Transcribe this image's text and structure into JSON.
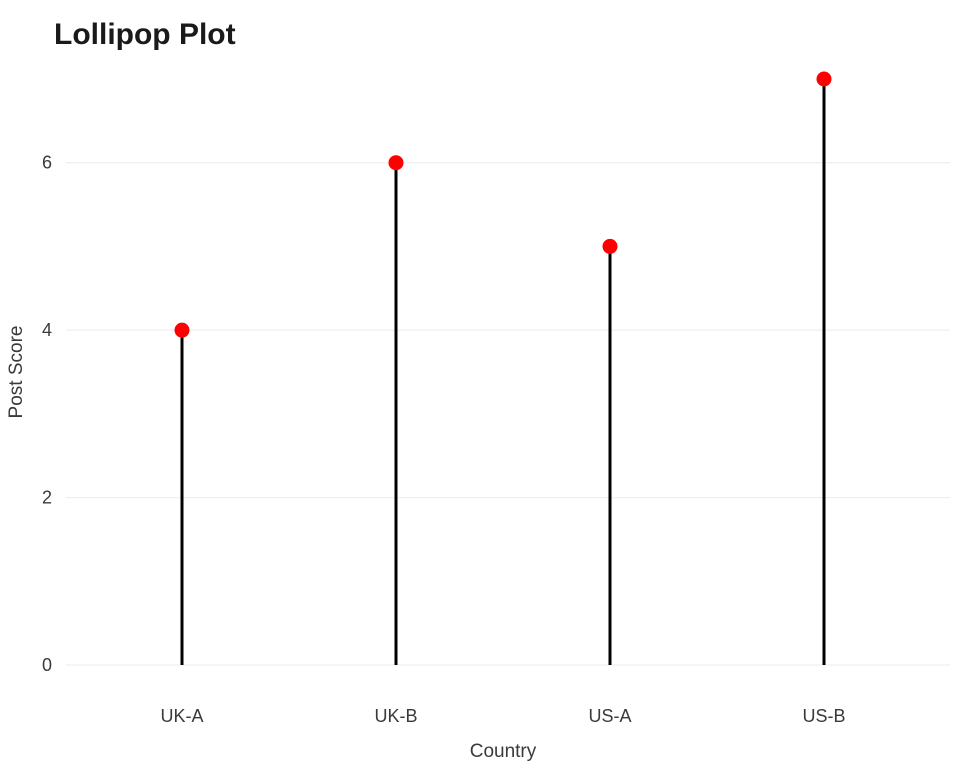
{
  "chart_data": {
    "type": "lollipop",
    "title": "Lollipop Plot",
    "xlabel": "Country",
    "ylabel": "Post Score",
    "categories": [
      "UK-A",
      "UK-B",
      "US-A",
      "US-B"
    ],
    "values": [
      4,
      6,
      5,
      7
    ],
    "ylim": [
      0,
      7
    ],
    "yticks": [
      0,
      2,
      4,
      6
    ],
    "grid": true,
    "legend": "none",
    "colors": {
      "point": "#ff0000",
      "stem": "#000000",
      "grid": "#ebebeb"
    }
  }
}
